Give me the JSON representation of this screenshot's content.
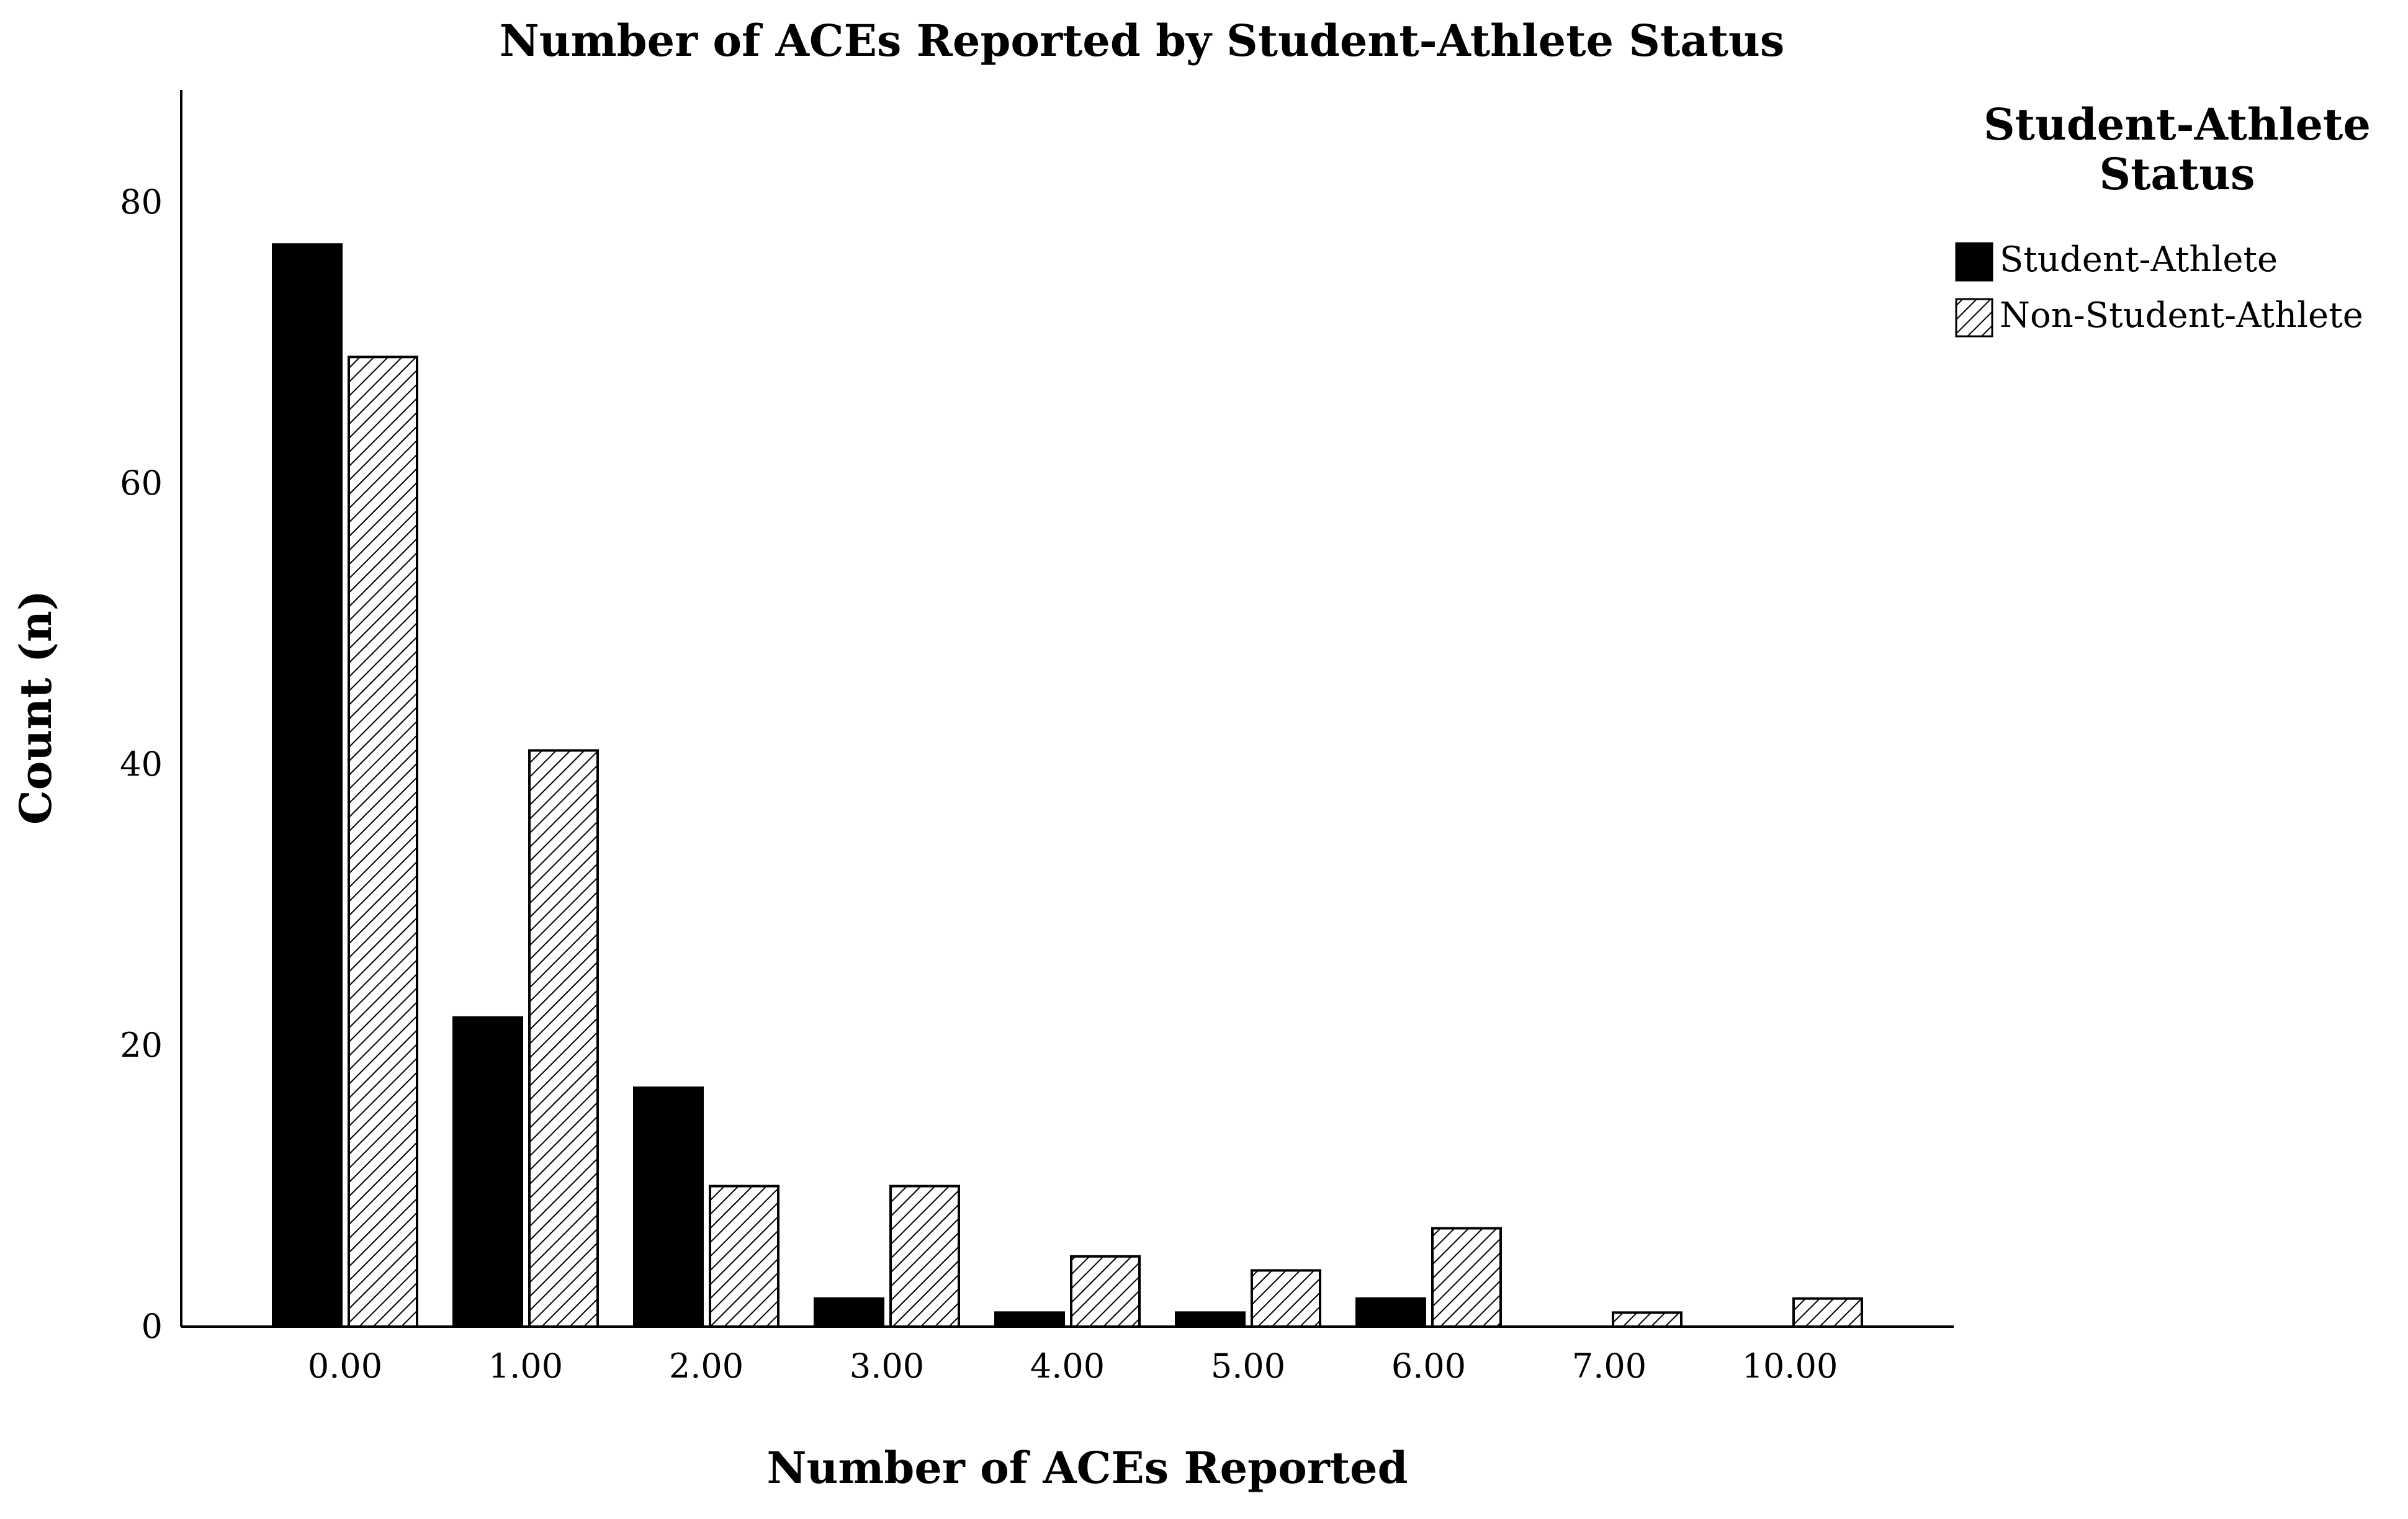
{
  "chart_data": {
    "type": "bar",
    "title": "Number of ACEs Reported by Student-Athlete Status",
    "xlabel": "Number of ACEs Reported",
    "ylabel": "Count (n)",
    "categories": [
      "0.00",
      "1.00",
      "2.00",
      "3.00",
      "4.00",
      "5.00",
      "6.00",
      "7.00",
      "10.00"
    ],
    "ylim": [
      0,
      88
    ],
    "yticks": [
      "0",
      "20",
      "40",
      "60",
      "80"
    ],
    "ytick_values": [
      0,
      20,
      40,
      60,
      80
    ],
    "grid": false,
    "legend": {
      "title_line1": "Student-Athlete",
      "title_line2": "Status",
      "placement": "right"
    },
    "series": [
      {
        "name": "Student-Athlete",
        "fill": "solid",
        "color": "#000000",
        "values": [
          77,
          22,
          17,
          2,
          1,
          1,
          2,
          0,
          0
        ]
      },
      {
        "name": "Non-Student-Athlete",
        "fill": "hatched",
        "color": "#ffffff",
        "values": [
          69,
          41,
          10,
          10,
          5,
          4,
          7,
          1,
          2
        ]
      }
    ]
  }
}
